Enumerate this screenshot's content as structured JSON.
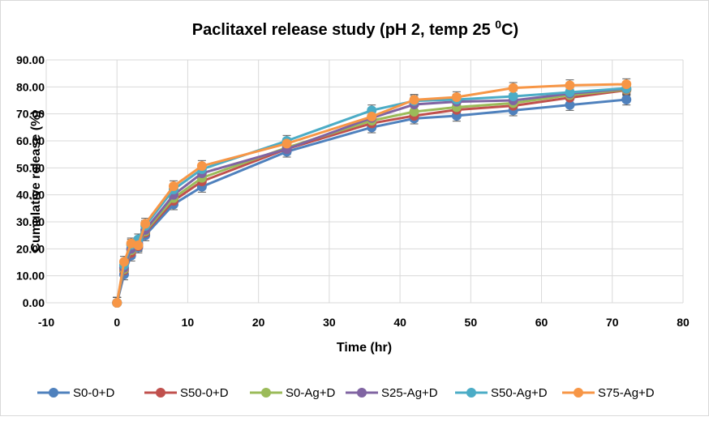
{
  "chart_data": {
    "type": "line",
    "title": "Paclitaxel release study (pH 2, temp 25 ",
    "title_superscript": "0",
    "title_suffix": "C)",
    "xlabel": "Time (hr)",
    "ylabel": "Cumulative release (%)",
    "xlim": [
      -10,
      80
    ],
    "ylim": [
      0,
      90
    ],
    "xticks": [
      -10,
      0,
      10,
      20,
      30,
      40,
      50,
      60,
      70,
      80
    ],
    "yticks": [
      0,
      10,
      20,
      30,
      40,
      50,
      60,
      70,
      80,
      90
    ],
    "ytick_labels": [
      "0.00",
      "10.00",
      "20.00",
      "30.00",
      "40.00",
      "50.00",
      "60.00",
      "70.00",
      "80.00",
      "90.00"
    ],
    "grid": true,
    "error_bars": true,
    "legend_position": "bottom",
    "x": [
      0,
      1,
      2,
      3,
      4,
      8,
      12,
      24,
      36,
      42,
      48,
      56,
      64,
      72
    ],
    "series": [
      {
        "name": "S0-0+D",
        "color": "#4F81BD",
        "values": [
          0,
          10.5,
          17.5,
          20.5,
          25,
          36.5,
          43,
          56,
          65,
          68.3,
          69.3,
          71.3,
          73.3,
          75.3
        ]
      },
      {
        "name": "S50-0+D",
        "color": "#C0504D",
        "values": [
          0,
          12,
          18.5,
          21,
          26,
          37.8,
          45,
          57,
          66.5,
          69.3,
          71.5,
          73,
          76,
          78.8
        ]
      },
      {
        "name": "S0-Ag+D",
        "color": "#9BBB59",
        "values": [
          0,
          12.5,
          19.5,
          21.5,
          26.5,
          38.8,
          46.3,
          57.5,
          67.5,
          70.8,
          72.5,
          74,
          77,
          79
        ]
      },
      {
        "name": "S25-Ag+D",
        "color": "#8064A2",
        "values": [
          0,
          13,
          20,
          22,
          27,
          40,
          48,
          57,
          68.5,
          73.5,
          74.5,
          75,
          77.5,
          79.3
        ]
      },
      {
        "name": "S50-Ag+D",
        "color": "#4BACC6",
        "values": [
          0,
          14,
          21.5,
          23.5,
          28.5,
          42,
          49.5,
          60,
          71.3,
          74.8,
          75.3,
          76.5,
          78,
          79.5
        ]
      },
      {
        "name": "S75-Ag+D",
        "color": "#F79646",
        "values": [
          0,
          15.2,
          22,
          21.3,
          29.3,
          43.2,
          50.7,
          59,
          69,
          75.2,
          76.2,
          79.6,
          80.6,
          81
        ]
      }
    ],
    "error": 2
  }
}
